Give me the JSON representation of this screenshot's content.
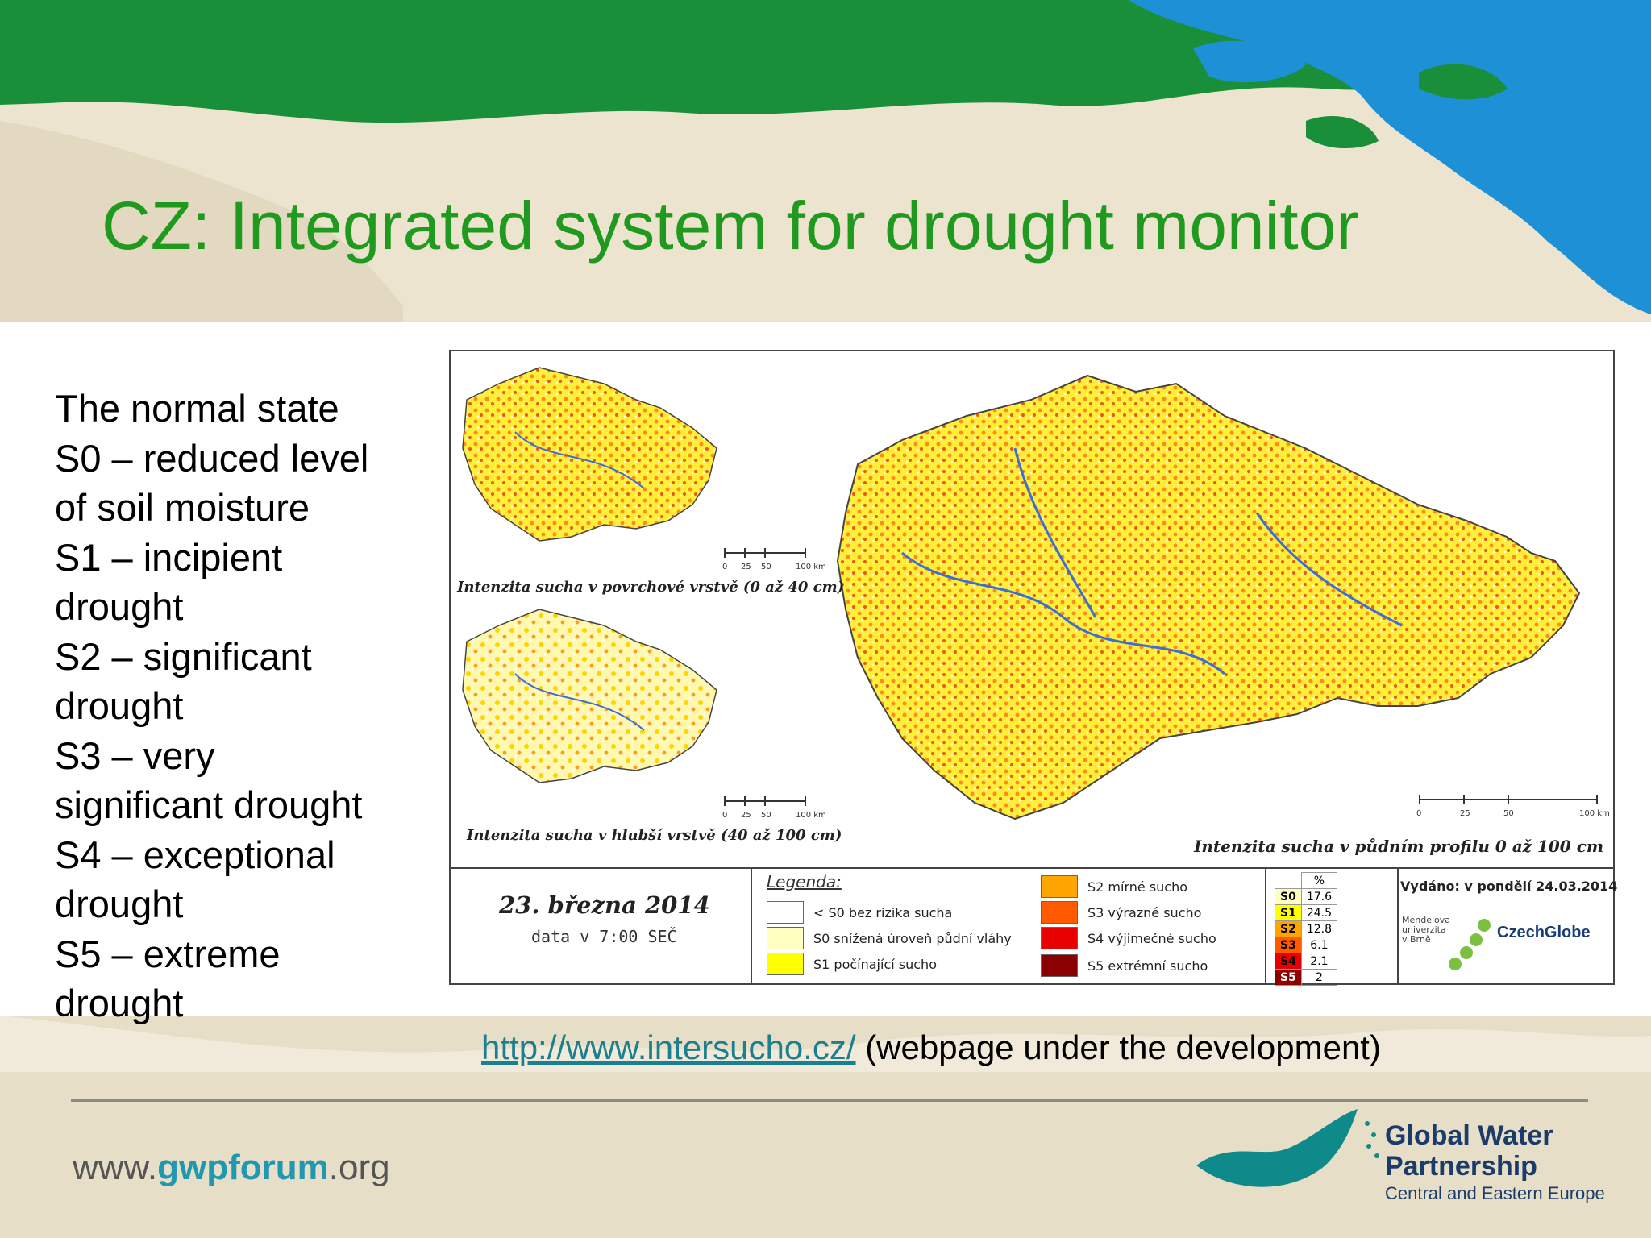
{
  "slide": {
    "title": "CZ: Integrated system for drought monitor",
    "legend_lines": [
      "The normal state",
      "S0 – reduced level",
      "of soil moisture",
      "S1 – incipient",
      "drought",
      "S2 – significant",
      "drought",
      "S3 – very",
      "significant drought",
      "S4 – exceptional",
      "drought",
      "S5 – extreme",
      "drought"
    ],
    "url_link": "http://www.intersucho.cz/",
    "url_note": " (webpage under the development)",
    "footer_site_prefix": "www.",
    "footer_site_accent": "gwpforum",
    "footer_site_suffix": ".org",
    "logo_line1": "Global Water",
    "logo_line2": "Partnership",
    "logo_line3": "Central and Eastern Europe"
  },
  "map": {
    "small_map_top_caption": "Intenzita sucha v povrchové vrstvě (0 až 40 cm)",
    "small_map_bottom_caption": "Intenzita sucha v hlubší vrstvě (40 až 100 cm)",
    "big_map_caption": "Intenzita sucha v půdním profilu 0 až 100 cm",
    "scale_labels": [
      "0",
      "25",
      "50",
      "100 km"
    ],
    "date": "23. března 2014",
    "data_time": "data v 7:00 SEČ",
    "legend_title": "Legenda:",
    "legend_items": [
      {
        "label": "< S0 bez rizika sucha",
        "color": "#ffffff"
      },
      {
        "label": "S0 snížená úroveň půdní vláhy",
        "color": "#ffffc0"
      },
      {
        "label": "S1 počínající sucho",
        "color": "#ffff00"
      },
      {
        "label": "S2 mírné sucho",
        "color": "#ffa500"
      },
      {
        "label": "S3 výrazné sucho",
        "color": "#ff5a00"
      },
      {
        "label": "S4 výjimečné sucho",
        "color": "#e60000"
      },
      {
        "label": "S5 extrémní sucho",
        "color": "#8b0000"
      }
    ],
    "pct_header": "%",
    "pct_rows": [
      {
        "cls": "S0",
        "value": "17.6",
        "color": "#ffffc0"
      },
      {
        "cls": "S1",
        "value": "24.5",
        "color": "#ffff00"
      },
      {
        "cls": "S2",
        "value": "12.8",
        "color": "#ffa500"
      },
      {
        "cls": "S3",
        "value": "6.1",
        "color": "#ff5a00"
      },
      {
        "cls": "S4",
        "value": "2.1",
        "color": "#e60000"
      },
      {
        "cls": "S5",
        "value": "2",
        "color": "#8b0000"
      }
    ],
    "issued": "Vydáno: v pondělí 24.03.2014",
    "uni_lines": [
      "Mendelova",
      "univerzita",
      "v Brně"
    ],
    "czechglobe": "CzechGlobe"
  },
  "colors": {
    "title": "#1f9a1f",
    "link": "#1a7f8e",
    "sea_green": "#1a8f3a",
    "lake_blue": "#1e90d6",
    "logo_teal": "#0f8a8a"
  }
}
